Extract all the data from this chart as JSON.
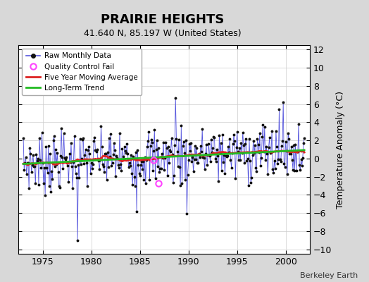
{
  "title": "PRAIRIE HEIGHTS",
  "subtitle": "41.640 N, 85.197 W (United States)",
  "ylabel": "Temperature Anomaly (°C)",
  "xlabel_note": "Berkeley Earth",
  "xlim": [
    1972.5,
    2002.5
  ],
  "ylim": [
    -10.5,
    12.5
  ],
  "yticks": [
    -10,
    -8,
    -6,
    -4,
    -2,
    0,
    2,
    4,
    6,
    8,
    10,
    12
  ],
  "xticks": [
    1975,
    1980,
    1985,
    1990,
    1995,
    2000
  ],
  "background_color": "#d8d8d8",
  "plot_background": "#ffffff",
  "raw_color": "#5555dd",
  "dot_color": "#111111",
  "ma_color": "#dd2222",
  "trend_color": "#22bb22",
  "qc_color": "#ff44ff",
  "legend_items": [
    "Raw Monthly Data",
    "Quality Control Fail",
    "Five Year Moving Average",
    "Long-Term Trend"
  ],
  "title_fontsize": 13,
  "subtitle_fontsize": 9,
  "tick_fontsize": 9,
  "ylabel_fontsize": 9
}
